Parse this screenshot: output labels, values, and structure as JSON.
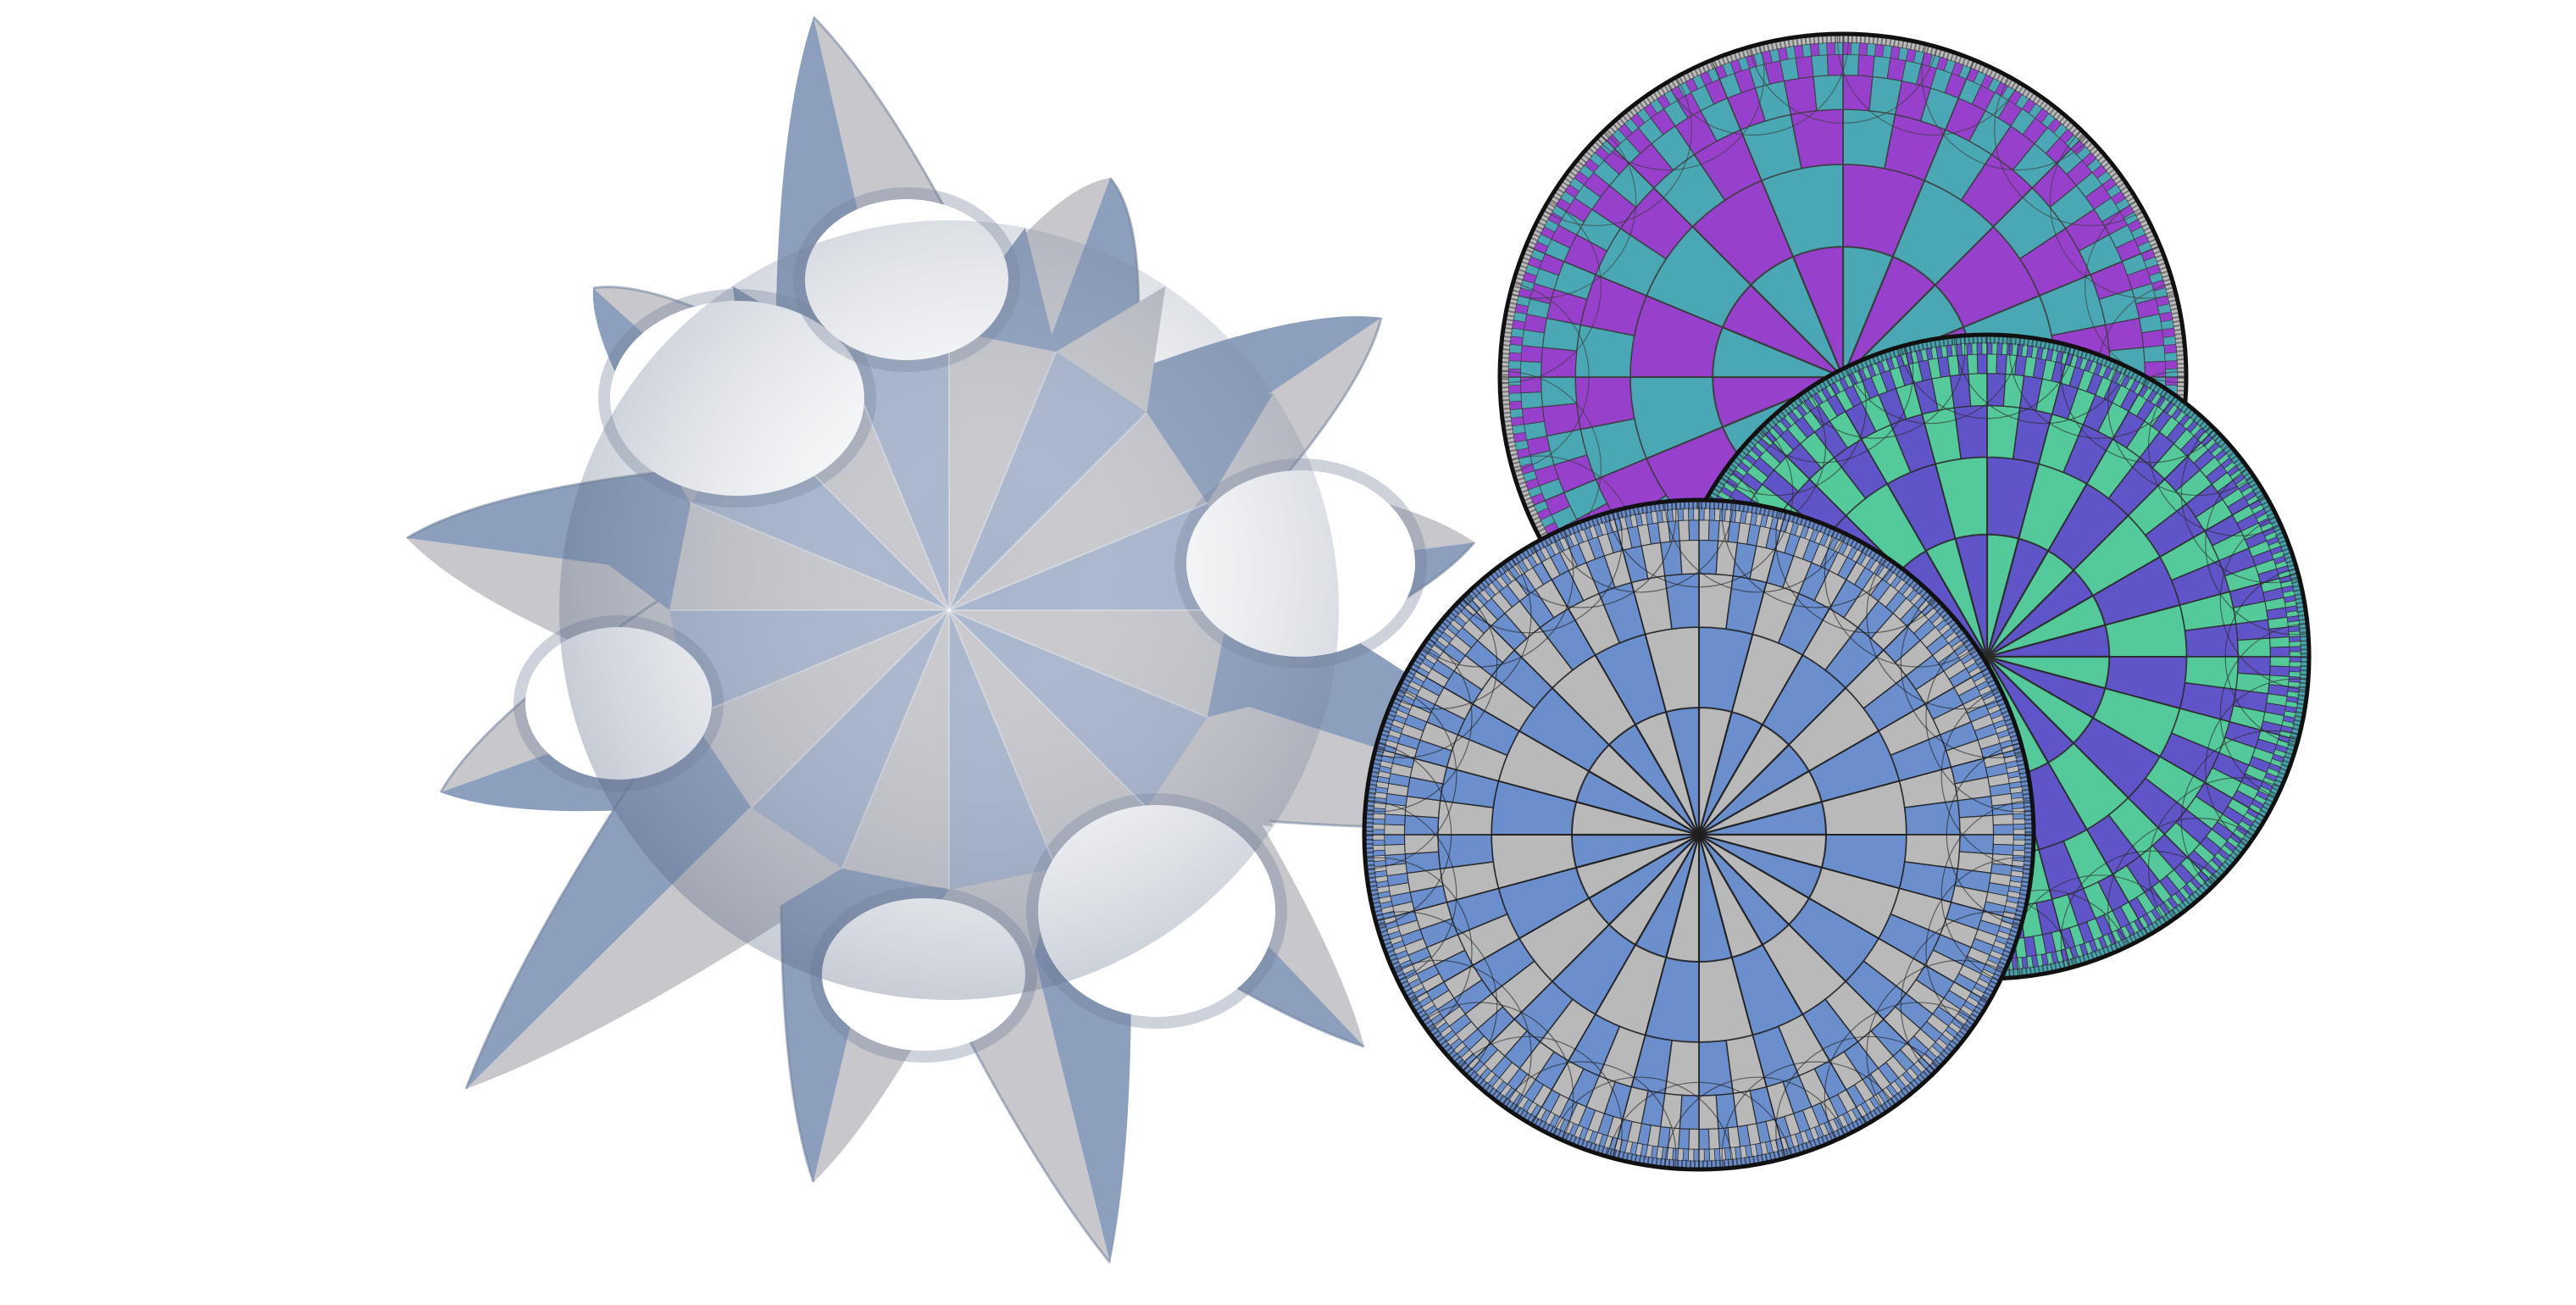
{
  "figure": {
    "background": "#ffffff",
    "surface": {
      "description_name": "triply-periodic-minimal-surface",
      "symmetry_order": 8,
      "colors": {
        "light": "#c8c8cc",
        "dark": "#8c9fbd",
        "mid": "#a7b5cc",
        "shadow": "#6f7f99"
      }
    },
    "disks": [
      {
        "id": "back-disk",
        "tiling_order": 8,
        "colors": {
          "primary": "#9640cc",
          "secondary": "#4aa8b4",
          "edge": "#bdbdbd",
          "line": "#3a3a3a"
        }
      },
      {
        "id": "middle-disk",
        "tiling_order": 12,
        "colors": {
          "primary": "#5f54c8",
          "secondary": "#54c99a",
          "edge": "#48a6b0",
          "line": "#2a2a2a"
        }
      },
      {
        "id": "front-disk",
        "tiling_order": 12,
        "colors": {
          "primary": "#6a8fcc",
          "secondary": "#b9b9b9",
          "edge": "#6a8fcc",
          "line": "#1e1e1e"
        }
      }
    ]
  }
}
